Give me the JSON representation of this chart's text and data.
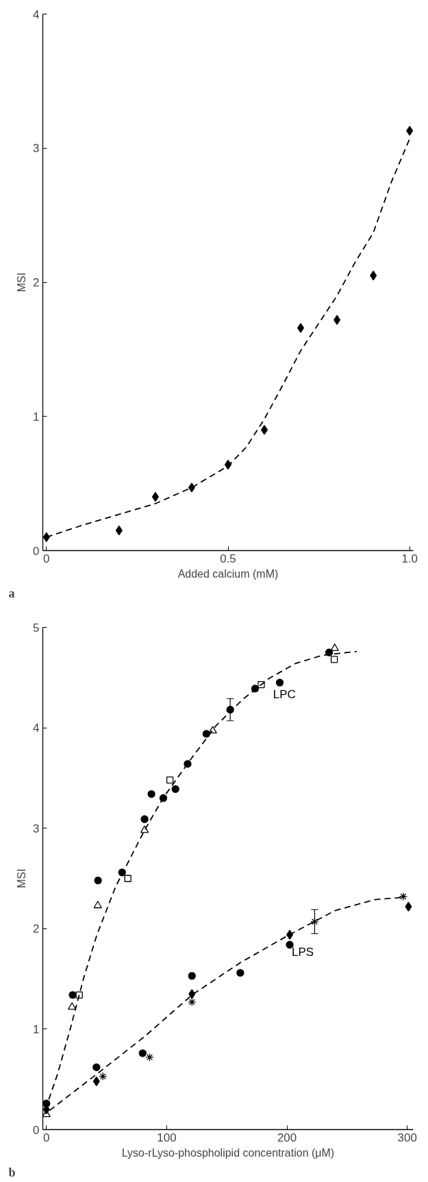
{
  "chart_data": [
    {
      "type": "scatter",
      "xlabel": "Added calcium (mM)",
      "ylabel": "MSI",
      "annotations": [
        "a"
      ],
      "xlim": [
        -0.01,
        1.01
      ],
      "ylim": [
        0,
        4
      ],
      "xticks": [
        0,
        0.5,
        {
          "value": 1.0,
          "label": "1.0"
        }
      ],
      "yticks": [
        0,
        1,
        2,
        3,
        4
      ],
      "grid": false,
      "series": [
        {
          "marker": "diamond",
          "color": "#000000",
          "x": [
            0,
            0.2,
            0.3,
            0.4,
            0.5,
            0.6,
            0.7,
            0.8,
            0.9,
            1.0
          ],
          "values": [
            0.1,
            0.15,
            0.4,
            0.47,
            0.64,
            0.9,
            1.66,
            1.72,
            2.05,
            3.13
          ]
        },
        {
          "type": "line",
          "line_style": "dashed",
          "color": "#000000",
          "x": [
            0,
            0.1,
            0.2,
            0.3,
            0.4,
            0.5,
            0.55,
            0.6,
            0.65,
            0.7,
            0.8,
            0.85,
            0.9,
            0.95,
            1.0
          ],
          "values": [
            0.1,
            0.19,
            0.27,
            0.35,
            0.47,
            0.63,
            0.77,
            0.98,
            1.23,
            1.49,
            1.9,
            2.15,
            2.37,
            2.75,
            3.07
          ]
        }
      ]
    },
    {
      "type": "scatter",
      "xlabel": "Lyso-rLyso-phospholipid concentration (μM)",
      "ylabel": "MSI",
      "annotations": [
        "b"
      ],
      "xlim": [
        -3,
        305
      ],
      "ylim": [
        0,
        5
      ],
      "xticks": [
        0,
        100,
        200,
        300
      ],
      "yticks": [
        0,
        1,
        2,
        3,
        4,
        5
      ],
      "grid": false,
      "series": [
        {
          "marker": "circle",
          "color": "#000000",
          "x": [
            0,
            21.8,
            42.9,
            62.9,
            81.6,
            87.3,
            97.2,
            107.3,
            117.4,
            133,
            152.8,
            173.5,
            194,
            235
          ],
          "values": [
            0.26,
            1.34,
            2.48,
            2.56,
            3.09,
            3.34,
            3.3,
            3.39,
            3.64,
            3.94,
            4.18,
            4.39,
            4.45,
            4.75
          ],
          "errors": [
            null,
            null,
            null,
            null,
            null,
            null,
            null,
            null,
            null,
            null,
            [
              4.07,
              4.29
            ],
            null,
            null,
            null
          ]
        },
        {
          "marker": "square",
          "color": "#000000",
          "x": [
            27.3,
            67.7,
            102.7,
            178.6,
            239.3
          ],
          "values": [
            1.34,
            2.5,
            3.48,
            4.43,
            4.68
          ]
        },
        {
          "marker": "diamond",
          "color": "#000000",
          "x": [
            0,
            41.6,
            121,
            202.3,
            301
          ],
          "values": [
            0.2,
            0.48,
            1.35,
            1.94,
            2.22
          ]
        },
        {
          "marker": "circle",
          "color": "#000000",
          "x": [
            41.6,
            80,
            121,
            161.2,
            202.3
          ],
          "values": [
            0.62,
            0.76,
            1.53,
            1.56,
            1.84
          ]
        },
        {
          "marker": "cross",
          "color": "#000000",
          "x": [
            47,
            85.8,
            121,
            223,
            296.7
          ],
          "values": [
            0.53,
            0.72,
            1.27,
            2.07,
            2.32
          ],
          "errors": [
            null,
            null,
            null,
            [
              1.95,
              2.19
            ],
            null
          ]
        },
        {
          "marker": "triangle",
          "color": "#000000",
          "x": [
            0,
            21.3,
            42.7,
            81.6,
            138.3,
            239.7
          ],
          "values": [
            0.15,
            1.22,
            2.23,
            2.98,
            3.97,
            4.79
          ]
        },
        {
          "type": "line",
          "name": "LPC",
          "line_style": "dashed",
          "color": "#000000",
          "x": [
            2,
            9.2,
            20,
            31,
            42,
            57.6,
            81.6,
            97,
            119,
            141,
            163,
            185,
            207,
            229,
            258
          ],
          "values": [
            0.3,
            0.55,
            1.01,
            1.51,
            1.94,
            2.42,
            2.98,
            3.3,
            3.67,
            4.02,
            4.28,
            4.49,
            4.64,
            4.72,
            4.76
          ]
        },
        {
          "type": "line",
          "name": "LPS",
          "line_style": "dashed",
          "color": "#000000",
          "x": [
            2.6,
            41.6,
            82,
            121,
            161,
            200.5,
            240,
            273,
            295
          ],
          "values": [
            0.19,
            0.55,
            0.93,
            1.34,
            1.66,
            1.93,
            2.18,
            2.29,
            2.31
          ]
        }
      ]
    }
  ]
}
